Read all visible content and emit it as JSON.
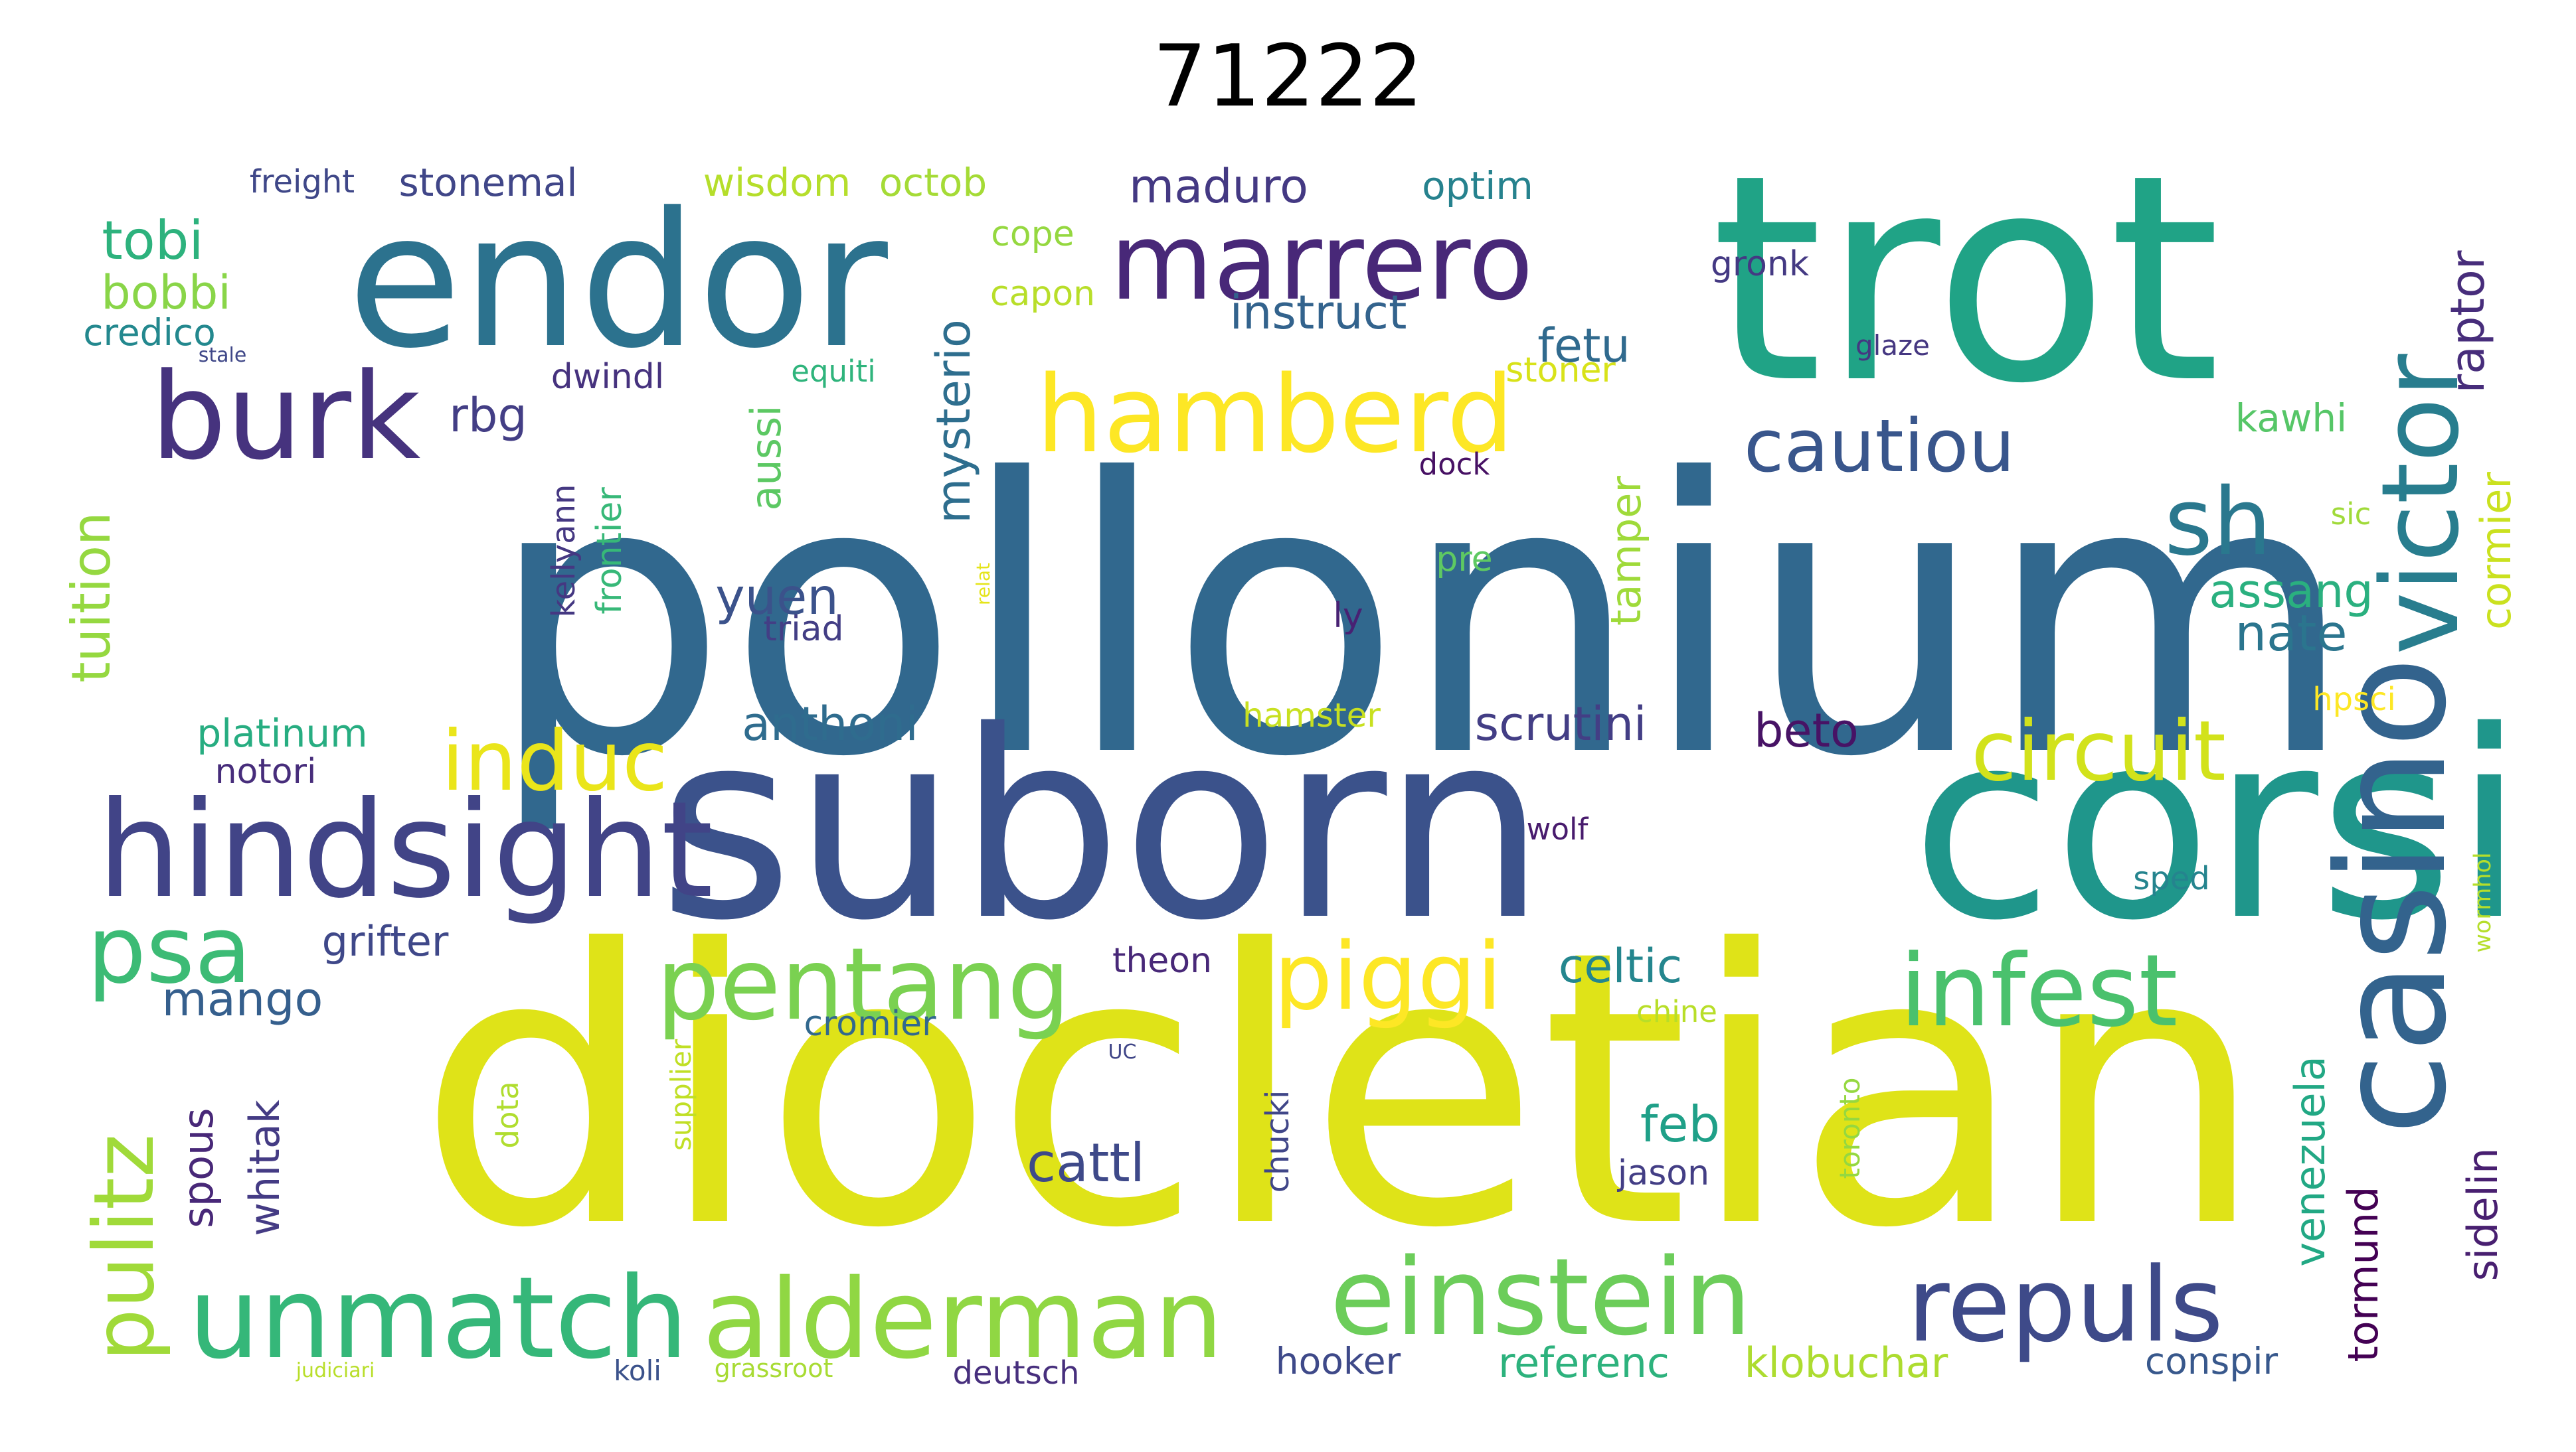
{
  "title": "71222",
  "words": [
    {
      "text": "pollonium",
      "color": "#31688e"
    },
    {
      "text": "diocletian",
      "color": "#dfe318"
    },
    {
      "text": "suborn",
      "color": "#3b528b"
    },
    {
      "text": "trot",
      "color": "#20a386"
    },
    {
      "text": "corsi",
      "color": "#1f968b"
    },
    {
      "text": "endor",
      "color": "#2c728e"
    },
    {
      "text": "hindsight",
      "color": "#414487"
    },
    {
      "text": "casino",
      "color": "#33638d"
    },
    {
      "text": "marrero",
      "color": "#482878"
    },
    {
      "text": "burk",
      "color": "#46337e"
    },
    {
      "text": "hamberd",
      "color": "#fde725"
    },
    {
      "text": "victor",
      "color": "#287d8e"
    },
    {
      "text": "unmatch",
      "color": "#35b779"
    },
    {
      "text": "alderman",
      "color": "#90d743"
    },
    {
      "text": "einstein",
      "color": "#6ccd5a"
    },
    {
      "text": "repuls",
      "color": "#3e4a89"
    },
    {
      "text": "infest",
      "color": "#4ac16d"
    },
    {
      "text": "pentang",
      "color": "#7ad151"
    },
    {
      "text": "piggi",
      "color": "#fde725"
    },
    {
      "text": "circuit",
      "color": "#d2e21b"
    },
    {
      "text": "induc",
      "color": "#eae51a"
    },
    {
      "text": "cautiou",
      "color": "#39568c"
    },
    {
      "text": "psa",
      "color": "#3cbb75"
    },
    {
      "text": "sh",
      "color": "#2a788e"
    },
    {
      "text": "pulitz",
      "color": "#a0da39"
    },
    {
      "text": "tuition",
      "color": "#95d840"
    },
    {
      "text": "tobi",
      "color": "#2db27d"
    },
    {
      "text": "bobbi",
      "color": "#89d548"
    },
    {
      "text": "credico",
      "color": "#23888e"
    },
    {
      "text": "freight",
      "color": "#3f4788"
    },
    {
      "text": "stonemal",
      "color": "#404688"
    },
    {
      "text": "wisdom",
      "color": "#b5de2b"
    },
    {
      "text": "octob",
      "color": "#a5db36"
    },
    {
      "text": "maduro",
      "color": "#443983"
    },
    {
      "text": "optim",
      "color": "#26828e"
    },
    {
      "text": "cope",
      "color": "#95d840"
    },
    {
      "text": "capon",
      "color": "#b8de29"
    },
    {
      "text": "instruct",
      "color": "#33638d"
    },
    {
      "text": "gronk",
      "color": "#443983"
    },
    {
      "text": "glaze",
      "color": "#453781"
    },
    {
      "text": "stoner",
      "color": "#d8e219"
    },
    {
      "text": "raptor",
      "color": "#472d7b"
    },
    {
      "text": "fetu",
      "color": "#306a8e"
    },
    {
      "text": "rbg",
      "color": "#433e85"
    },
    {
      "text": "dwindl",
      "color": "#46327e"
    },
    {
      "text": "equiti",
      "color": "#2fb47c"
    },
    {
      "text": "stale",
      "color": "#3f4788"
    },
    {
      "text": "mysterio",
      "color": "#2e6e8e"
    },
    {
      "text": "aussi",
      "color": "#5cc863"
    },
    {
      "text": "kawhi",
      "color": "#56c667"
    },
    {
      "text": "dock",
      "color": "#471164"
    },
    {
      "text": "tamper",
      "color": "#9fda3a"
    },
    {
      "text": "cormier",
      "color": "#cae11f"
    },
    {
      "text": "sic",
      "color": "#a0da39"
    },
    {
      "text": "kellyann",
      "color": "#453882"
    },
    {
      "text": "frontier",
      "color": "#37b878"
    },
    {
      "text": "pre",
      "color": "#5ec962"
    },
    {
      "text": "assang",
      "color": "#2ab07f"
    },
    {
      "text": "yuen",
      "color": "#3b528b"
    },
    {
      "text": "triad",
      "color": "#433e85"
    },
    {
      "text": "nate",
      "color": "#2b758e"
    },
    {
      "text": "ly",
      "color": "#482173"
    },
    {
      "text": "relat",
      "color": "#e5e419"
    },
    {
      "text": "anthoni",
      "color": "#2f6c8e"
    },
    {
      "text": "platinum",
      "color": "#27ad81"
    },
    {
      "text": "notori",
      "color": "#472d7b"
    },
    {
      "text": "hamster",
      "color": "#c8e020"
    },
    {
      "text": "scrutini",
      "color": "#433e85"
    },
    {
      "text": "beto",
      "color": "#471365"
    },
    {
      "text": "hpsci",
      "color": "#fde725"
    },
    {
      "text": "wormhol",
      "color": "#b5de2b"
    },
    {
      "text": "wolf",
      "color": "#481b6d"
    },
    {
      "text": "sped",
      "color": "#25848e"
    },
    {
      "text": "grifter",
      "color": "#3f4889"
    },
    {
      "text": "theon",
      "color": "#482878"
    },
    {
      "text": "celtic",
      "color": "#24868e"
    },
    {
      "text": "chine",
      "color": "#b8de29"
    },
    {
      "text": "mango",
      "color": "#355f8d"
    },
    {
      "text": "cromier",
      "color": "#31688e"
    },
    {
      "text": "UC",
      "color": "#404688"
    },
    {
      "text": "supplier",
      "color": "#c0df25"
    },
    {
      "text": "dota",
      "color": "#b0dd2f"
    },
    {
      "text": "spous",
      "color": "#482878"
    },
    {
      "text": "whitak",
      "color": "#443b84"
    },
    {
      "text": "chucki",
      "color": "#404688"
    },
    {
      "text": "toronto",
      "color": "#95d840"
    },
    {
      "text": "venezuela",
      "color": "#22a884"
    },
    {
      "text": "tormund",
      "color": "#440154"
    },
    {
      "text": "sidelin",
      "color": "#481f70"
    },
    {
      "text": "feb",
      "color": "#1fa088"
    },
    {
      "text": "jason",
      "color": "#433e85"
    },
    {
      "text": "cattl",
      "color": "#3e4989"
    },
    {
      "text": "judiciari",
      "color": "#b8de29"
    },
    {
      "text": "koli",
      "color": "#3b528b"
    },
    {
      "text": "grassroot",
      "color": "#a8db34"
    },
    {
      "text": "deutsch",
      "color": "#472f7d"
    },
    {
      "text": "hooker",
      "color": "#3e4989"
    },
    {
      "text": "referenc",
      "color": "#2db27d"
    },
    {
      "text": "klobuchar",
      "color": "#addc30"
    },
    {
      "text": "conspir",
      "color": "#38588c"
    }
  ]
}
